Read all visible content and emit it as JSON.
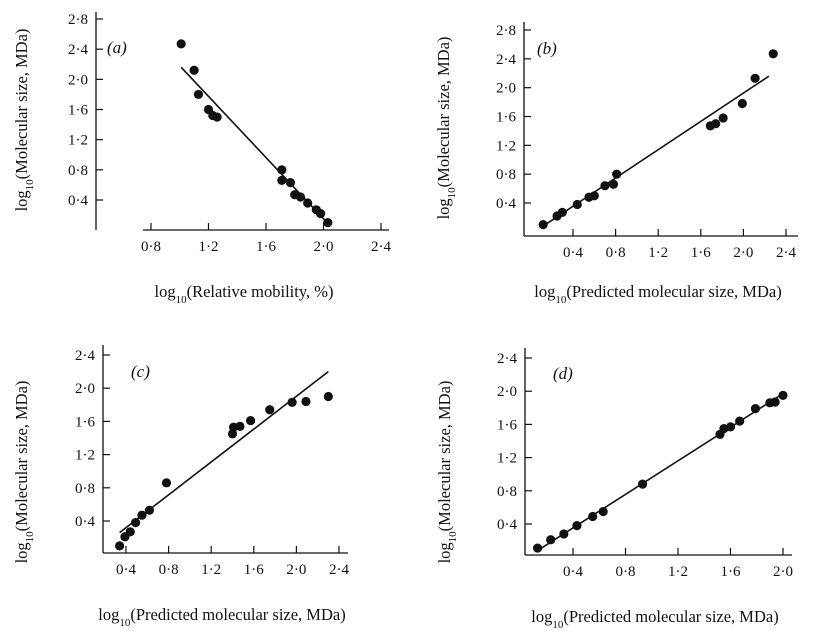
{
  "figure": {
    "y_title_prefix": "log",
    "y_title_sub": "10",
    "y_title_suffix": "(Molecular size, MDa)"
  },
  "chart_data": [
    {
      "type": "scatter",
      "panel_label": "(a)",
      "xlabel": {
        "prefix": "log",
        "sub": "10",
        "suffix": "(Relative mobility, %)"
      },
      "ylabel": {
        "prefix": "log",
        "sub": "10",
        "suffix": "(Molecular size, MDa)"
      },
      "xlim": [
        0.65,
        2.55
      ],
      "ylim": [
        0.0,
        2.8
      ],
      "xticks": [
        0.8,
        1.2,
        1.6,
        2.0,
        2.4
      ],
      "xtick_labels": [
        "0·8",
        "1·2",
        "1·6",
        "2·0",
        "2·4"
      ],
      "yticks": [
        0.4,
        0.8,
        1.2,
        1.6,
        2.0,
        2.4,
        2.8
      ],
      "ytick_labels": [
        "0·4",
        "0·8",
        "1·2",
        "1·6",
        "2·0",
        "2·4",
        "2·8"
      ],
      "grid": false,
      "points": [
        {
          "x": 1.01,
          "y": 2.47
        },
        {
          "x": 1.1,
          "y": 2.12
        },
        {
          "x": 1.13,
          "y": 1.8
        },
        {
          "x": 1.2,
          "y": 1.6
        },
        {
          "x": 1.23,
          "y": 1.52
        },
        {
          "x": 1.26,
          "y": 1.5
        },
        {
          "x": 1.71,
          "y": 0.8
        },
        {
          "x": 1.71,
          "y": 0.66
        },
        {
          "x": 1.77,
          "y": 0.63
        },
        {
          "x": 1.8,
          "y": 0.47
        },
        {
          "x": 1.84,
          "y": 0.44
        },
        {
          "x": 1.89,
          "y": 0.36
        },
        {
          "x": 1.95,
          "y": 0.27
        },
        {
          "x": 1.98,
          "y": 0.22
        },
        {
          "x": 2.03,
          "y": 0.1
        }
      ],
      "fit_line": {
        "x": [
          1.01,
          2.04
        ],
        "y": [
          2.16,
          0.07
        ]
      }
    },
    {
      "type": "scatter",
      "panel_label": "(b)",
      "xlabel": {
        "prefix": "log",
        "sub": "10",
        "suffix": "(Predicted molecular size, MDa)"
      },
      "ylabel": {
        "prefix": "log",
        "sub": "10",
        "suffix": "(Molecular size, MDa)"
      },
      "xlim": [
        0.0,
        2.55
      ],
      "ylim": [
        0.0,
        2.8
      ],
      "xticks": [
        0.4,
        0.8,
        1.2,
        1.6,
        2.0,
        2.4
      ],
      "xtick_labels": [
        "0·4",
        "0·8",
        "1·2",
        "1·6",
        "2·0",
        "2·4"
      ],
      "yticks": [
        0.4,
        0.8,
        1.2,
        1.6,
        2.0,
        2.4,
        2.8
      ],
      "ytick_labels": [
        "0·4",
        "0·8",
        "1·2",
        "1·6",
        "2·0",
        "2·4",
        "2·8"
      ],
      "grid": false,
      "points": [
        {
          "x": 0.12,
          "y": 0.1
        },
        {
          "x": 0.25,
          "y": 0.22
        },
        {
          "x": 0.3,
          "y": 0.27
        },
        {
          "x": 0.44,
          "y": 0.38
        },
        {
          "x": 0.55,
          "y": 0.48
        },
        {
          "x": 0.6,
          "y": 0.5
        },
        {
          "x": 0.7,
          "y": 0.64
        },
        {
          "x": 0.78,
          "y": 0.66
        },
        {
          "x": 0.81,
          "y": 0.8
        },
        {
          "x": 1.69,
          "y": 1.47
        },
        {
          "x": 1.74,
          "y": 1.5
        },
        {
          "x": 1.81,
          "y": 1.58
        },
        {
          "x": 1.99,
          "y": 1.78
        },
        {
          "x": 2.11,
          "y": 2.13
        },
        {
          "x": 2.28,
          "y": 2.47
        }
      ],
      "fit_line": {
        "x": [
          0.12,
          2.24
        ],
        "y": [
          0.08,
          2.16
        ]
      }
    },
    {
      "type": "scatter",
      "panel_label": "(c)",
      "xlabel": {
        "prefix": "log",
        "sub": "10",
        "suffix": "(Predicted molecular size, MDa)"
      },
      "ylabel": {
        "prefix": "log",
        "sub": "10",
        "suffix": "(Molecular size, MDa)"
      },
      "xlim": [
        0.2,
        2.55
      ],
      "ylim": [
        0.0,
        2.4
      ],
      "xticks": [
        0.4,
        0.8,
        1.2,
        1.6,
        2.0,
        2.4
      ],
      "xtick_labels": [
        "0·4",
        "0·8",
        "1·2",
        "1·6",
        "2·0",
        "2·4"
      ],
      "yticks": [
        0.4,
        0.8,
        1.2,
        1.6,
        2.0,
        2.4
      ],
      "ytick_labels": [
        "0·4",
        "0·8",
        "1·2",
        "1·6",
        "2·0",
        "2·4"
      ],
      "grid": false,
      "points": [
        {
          "x": 0.34,
          "y": 0.1
        },
        {
          "x": 0.39,
          "y": 0.21
        },
        {
          "x": 0.44,
          "y": 0.27
        },
        {
          "x": 0.49,
          "y": 0.38
        },
        {
          "x": 0.55,
          "y": 0.47
        },
        {
          "x": 0.62,
          "y": 0.53
        },
        {
          "x": 0.78,
          "y": 0.86
        },
        {
          "x": 1.4,
          "y": 1.45
        },
        {
          "x": 1.41,
          "y": 1.53
        },
        {
          "x": 1.47,
          "y": 1.54
        },
        {
          "x": 1.57,
          "y": 1.61
        },
        {
          "x": 1.75,
          "y": 1.74
        },
        {
          "x": 1.96,
          "y": 1.83
        },
        {
          "x": 2.09,
          "y": 1.84
        },
        {
          "x": 2.3,
          "y": 1.9
        }
      ],
      "fit_line": {
        "x": [
          0.34,
          2.3
        ],
        "y": [
          0.26,
          2.2
        ]
      }
    },
    {
      "type": "scatter",
      "panel_label": "(d)",
      "xlabel": {
        "prefix": "log",
        "sub": "10",
        "suffix": "(Predicted molecular size, MDa)"
      },
      "ylabel": {
        "prefix": "log",
        "sub": "10",
        "suffix": "(Molecular size, MDa)"
      },
      "xlim": [
        0.0,
        2.1
      ],
      "ylim": [
        0.0,
        2.4
      ],
      "xticks": [
        0.4,
        0.8,
        1.2,
        1.6,
        2.0
      ],
      "xtick_labels": [
        "0·4",
        "0·8",
        "1·2",
        "1·6",
        "2·0"
      ],
      "yticks": [
        0.4,
        0.8,
        1.2,
        1.6,
        2.0,
        2.4
      ],
      "ytick_labels": [
        "0·4",
        "0·8",
        "1·2",
        "1·6",
        "2·0",
        "2·4"
      ],
      "grid": false,
      "points": [
        {
          "x": 0.13,
          "y": 0.11
        },
        {
          "x": 0.23,
          "y": 0.21
        },
        {
          "x": 0.33,
          "y": 0.28
        },
        {
          "x": 0.43,
          "y": 0.38
        },
        {
          "x": 0.55,
          "y": 0.49
        },
        {
          "x": 0.63,
          "y": 0.55
        },
        {
          "x": 0.93,
          "y": 0.88
        },
        {
          "x": 1.52,
          "y": 1.48
        },
        {
          "x": 1.55,
          "y": 1.55
        },
        {
          "x": 1.6,
          "y": 1.57
        },
        {
          "x": 1.67,
          "y": 1.64
        },
        {
          "x": 1.79,
          "y": 1.79
        },
        {
          "x": 1.9,
          "y": 1.86
        },
        {
          "x": 1.94,
          "y": 1.87
        },
        {
          "x": 2.0,
          "y": 1.95
        }
      ],
      "fit_line": {
        "x": [
          0.13,
          2.0
        ],
        "y": [
          0.08,
          1.97
        ]
      }
    }
  ]
}
